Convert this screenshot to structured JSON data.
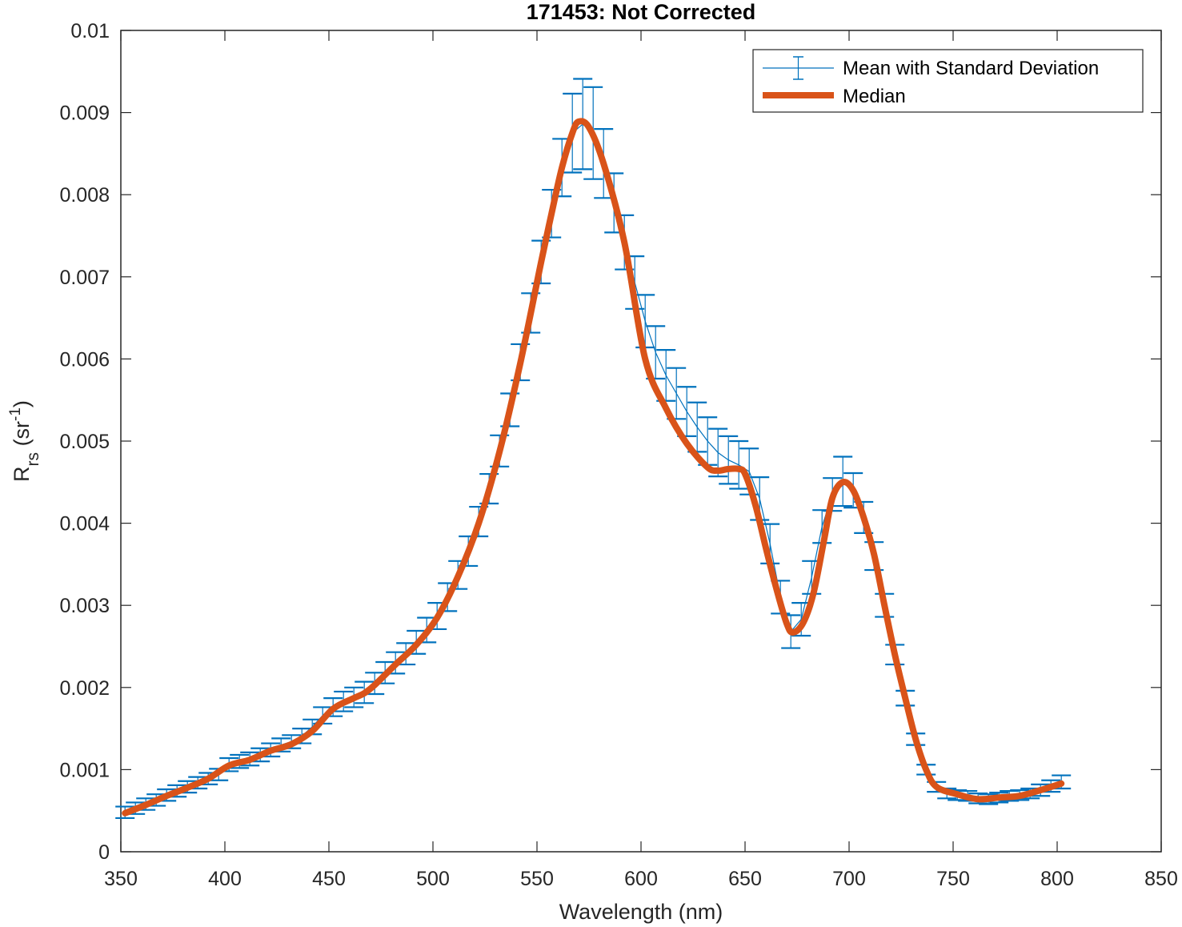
{
  "chart_data": {
    "type": "line",
    "title": "171453: Not Corrected",
    "xlabel": "Wavelength (nm)",
    "ylabel": {
      "main": "R",
      "sub": "rs",
      "unit_open": " (sr",
      "unit_sup": "-1",
      "unit_close": ")"
    },
    "xlim": [
      350,
      850
    ],
    "ylim": [
      0,
      0.01
    ],
    "xticks": [
      350,
      400,
      450,
      500,
      550,
      600,
      650,
      700,
      750,
      800,
      850
    ],
    "yticks": [
      0,
      0.001,
      0.002,
      0.003,
      0.004,
      0.005,
      0.006,
      0.007,
      0.008,
      0.009,
      0.01
    ],
    "ytick_labels": [
      "0",
      "0.001",
      "0.002",
      "0.003",
      "0.004",
      "0.005",
      "0.006",
      "0.007",
      "0.008",
      "0.009",
      "0.01"
    ],
    "grid": false,
    "legend_position": "top-right",
    "colors": {
      "mean": "#0072BD",
      "median": "#D95319"
    },
    "series": [
      {
        "name": "Mean with Standard Deviation",
        "style": "errorbar",
        "x": [
          352,
          357,
          362,
          367,
          372,
          377,
          382,
          387,
          392,
          397,
          402,
          407,
          412,
          417,
          422,
          427,
          432,
          437,
          442,
          447,
          452,
          457,
          462,
          467,
          472,
          477,
          482,
          487,
          492,
          497,
          502,
          507,
          512,
          517,
          522,
          527,
          532,
          537,
          542,
          547,
          552,
          557,
          562,
          567,
          572,
          577,
          582,
          587,
          592,
          597,
          602,
          607,
          612,
          617,
          622,
          627,
          632,
          637,
          642,
          647,
          652,
          657,
          662,
          667,
          672,
          677,
          682,
          687,
          692,
          697,
          702,
          707,
          712,
          717,
          722,
          727,
          732,
          737,
          742,
          747,
          752,
          757,
          762,
          767,
          772,
          777,
          782,
          787,
          792,
          797,
          802
        ],
        "y": [
          0.00048,
          0.00053,
          0.00058,
          0.00063,
          0.00069,
          0.00074,
          0.00079,
          0.00084,
          0.00089,
          0.00094,
          0.00106,
          0.0011,
          0.00113,
          0.00118,
          0.00124,
          0.0013,
          0.00134,
          0.00141,
          0.00152,
          0.00166,
          0.00176,
          0.00183,
          0.00188,
          0.00194,
          0.00205,
          0.00218,
          0.0023,
          0.00241,
          0.00255,
          0.0027,
          0.00287,
          0.0031,
          0.00337,
          0.00366,
          0.00402,
          0.00442,
          0.00488,
          0.00538,
          0.00596,
          0.00656,
          0.00718,
          0.00777,
          0.00833,
          0.00875,
          0.00886,
          0.00875,
          0.00838,
          0.0079,
          0.00742,
          0.00693,
          0.00646,
          0.00608,
          0.0058,
          0.00558,
          0.00536,
          0.00517,
          0.005,
          0.00486,
          0.00477,
          0.00471,
          0.00463,
          0.0043,
          0.00375,
          0.0031,
          0.00268,
          0.00283,
          0.00334,
          0.00396,
          0.00435,
          0.00451,
          0.0044,
          0.00407,
          0.0036,
          0.003,
          0.0024,
          0.00187,
          0.00137,
          0.001,
          0.00079,
          0.00071,
          0.00069,
          0.00068,
          0.00065,
          0.00064,
          0.00066,
          0.00068,
          0.00069,
          0.00071,
          0.00075,
          0.0008,
          0.00085
        ],
        "err": [
          7e-05,
          7e-05,
          7e-05,
          7e-05,
          7e-05,
          7e-05,
          7e-05,
          7e-05,
          7e-05,
          7e-05,
          8e-05,
          8e-05,
          8e-05,
          8e-05,
          8e-05,
          8e-05,
          8e-05,
          9e-05,
          9e-05,
          0.0001,
          0.00011,
          0.00012,
          0.00012,
          0.00013,
          0.00013,
          0.00013,
          0.00013,
          0.00013,
          0.00014,
          0.00015,
          0.00016,
          0.00017,
          0.00017,
          0.00018,
          0.00018,
          0.00018,
          0.00019,
          0.0002,
          0.00022,
          0.00024,
          0.00026,
          0.00029,
          0.00035,
          0.00048,
          0.00055,
          0.00056,
          0.00042,
          0.00036,
          0.00033,
          0.00032,
          0.00032,
          0.00032,
          0.00031,
          0.00031,
          0.0003,
          0.0003,
          0.00029,
          0.00029,
          0.00029,
          0.00029,
          0.00028,
          0.00026,
          0.00024,
          0.0002,
          0.0002,
          0.0002,
          0.0002,
          0.0002,
          0.0002,
          0.0003,
          0.00021,
          0.00019,
          0.00017,
          0.00014,
          0.00012,
          9e-05,
          7e-05,
          6e-05,
          6e-05,
          6e-05,
          6e-05,
          6e-05,
          6e-05,
          6e-05,
          6e-05,
          6e-05,
          6e-05,
          6e-05,
          7e-05,
          7e-05,
          8e-05
        ]
      },
      {
        "name": "Median",
        "style": "line",
        "x": [
          352,
          362,
          372,
          382,
          392,
          402,
          412,
          422,
          432,
          442,
          452,
          462,
          467,
          472,
          482,
          492,
          502,
          512,
          522,
          532,
          542,
          552,
          557,
          562,
          567,
          570,
          575,
          582,
          592,
          602,
          612,
          622,
          632,
          637,
          642,
          647,
          650,
          655,
          660,
          665,
          670,
          673,
          678,
          683,
          688,
          692,
          697,
          702,
          707,
          712,
          717,
          722,
          727,
          732,
          737,
          742,
          752,
          762,
          772,
          782,
          792,
          802
        ],
        "y": [
          0.00047,
          0.00057,
          0.00068,
          0.00078,
          0.00089,
          0.00105,
          0.00112,
          0.00123,
          0.00131,
          0.00147,
          0.00174,
          0.00187,
          0.00193,
          0.00203,
          0.00228,
          0.00252,
          0.00285,
          0.00335,
          0.004,
          0.00487,
          0.00595,
          0.00718,
          0.00777,
          0.00833,
          0.00875,
          0.00889,
          0.00882,
          0.00838,
          0.00742,
          0.006,
          0.0054,
          0.00497,
          0.00468,
          0.00464,
          0.00466,
          0.00466,
          0.0046,
          0.00422,
          0.0037,
          0.00321,
          0.00278,
          0.00267,
          0.00279,
          0.00316,
          0.0038,
          0.00431,
          0.0045,
          0.0044,
          0.00407,
          0.00362,
          0.003,
          0.0024,
          0.00187,
          0.00137,
          0.001,
          0.00079,
          0.0007,
          0.00064,
          0.00066,
          0.00068,
          0.00075,
          0.00083
        ]
      }
    ]
  }
}
